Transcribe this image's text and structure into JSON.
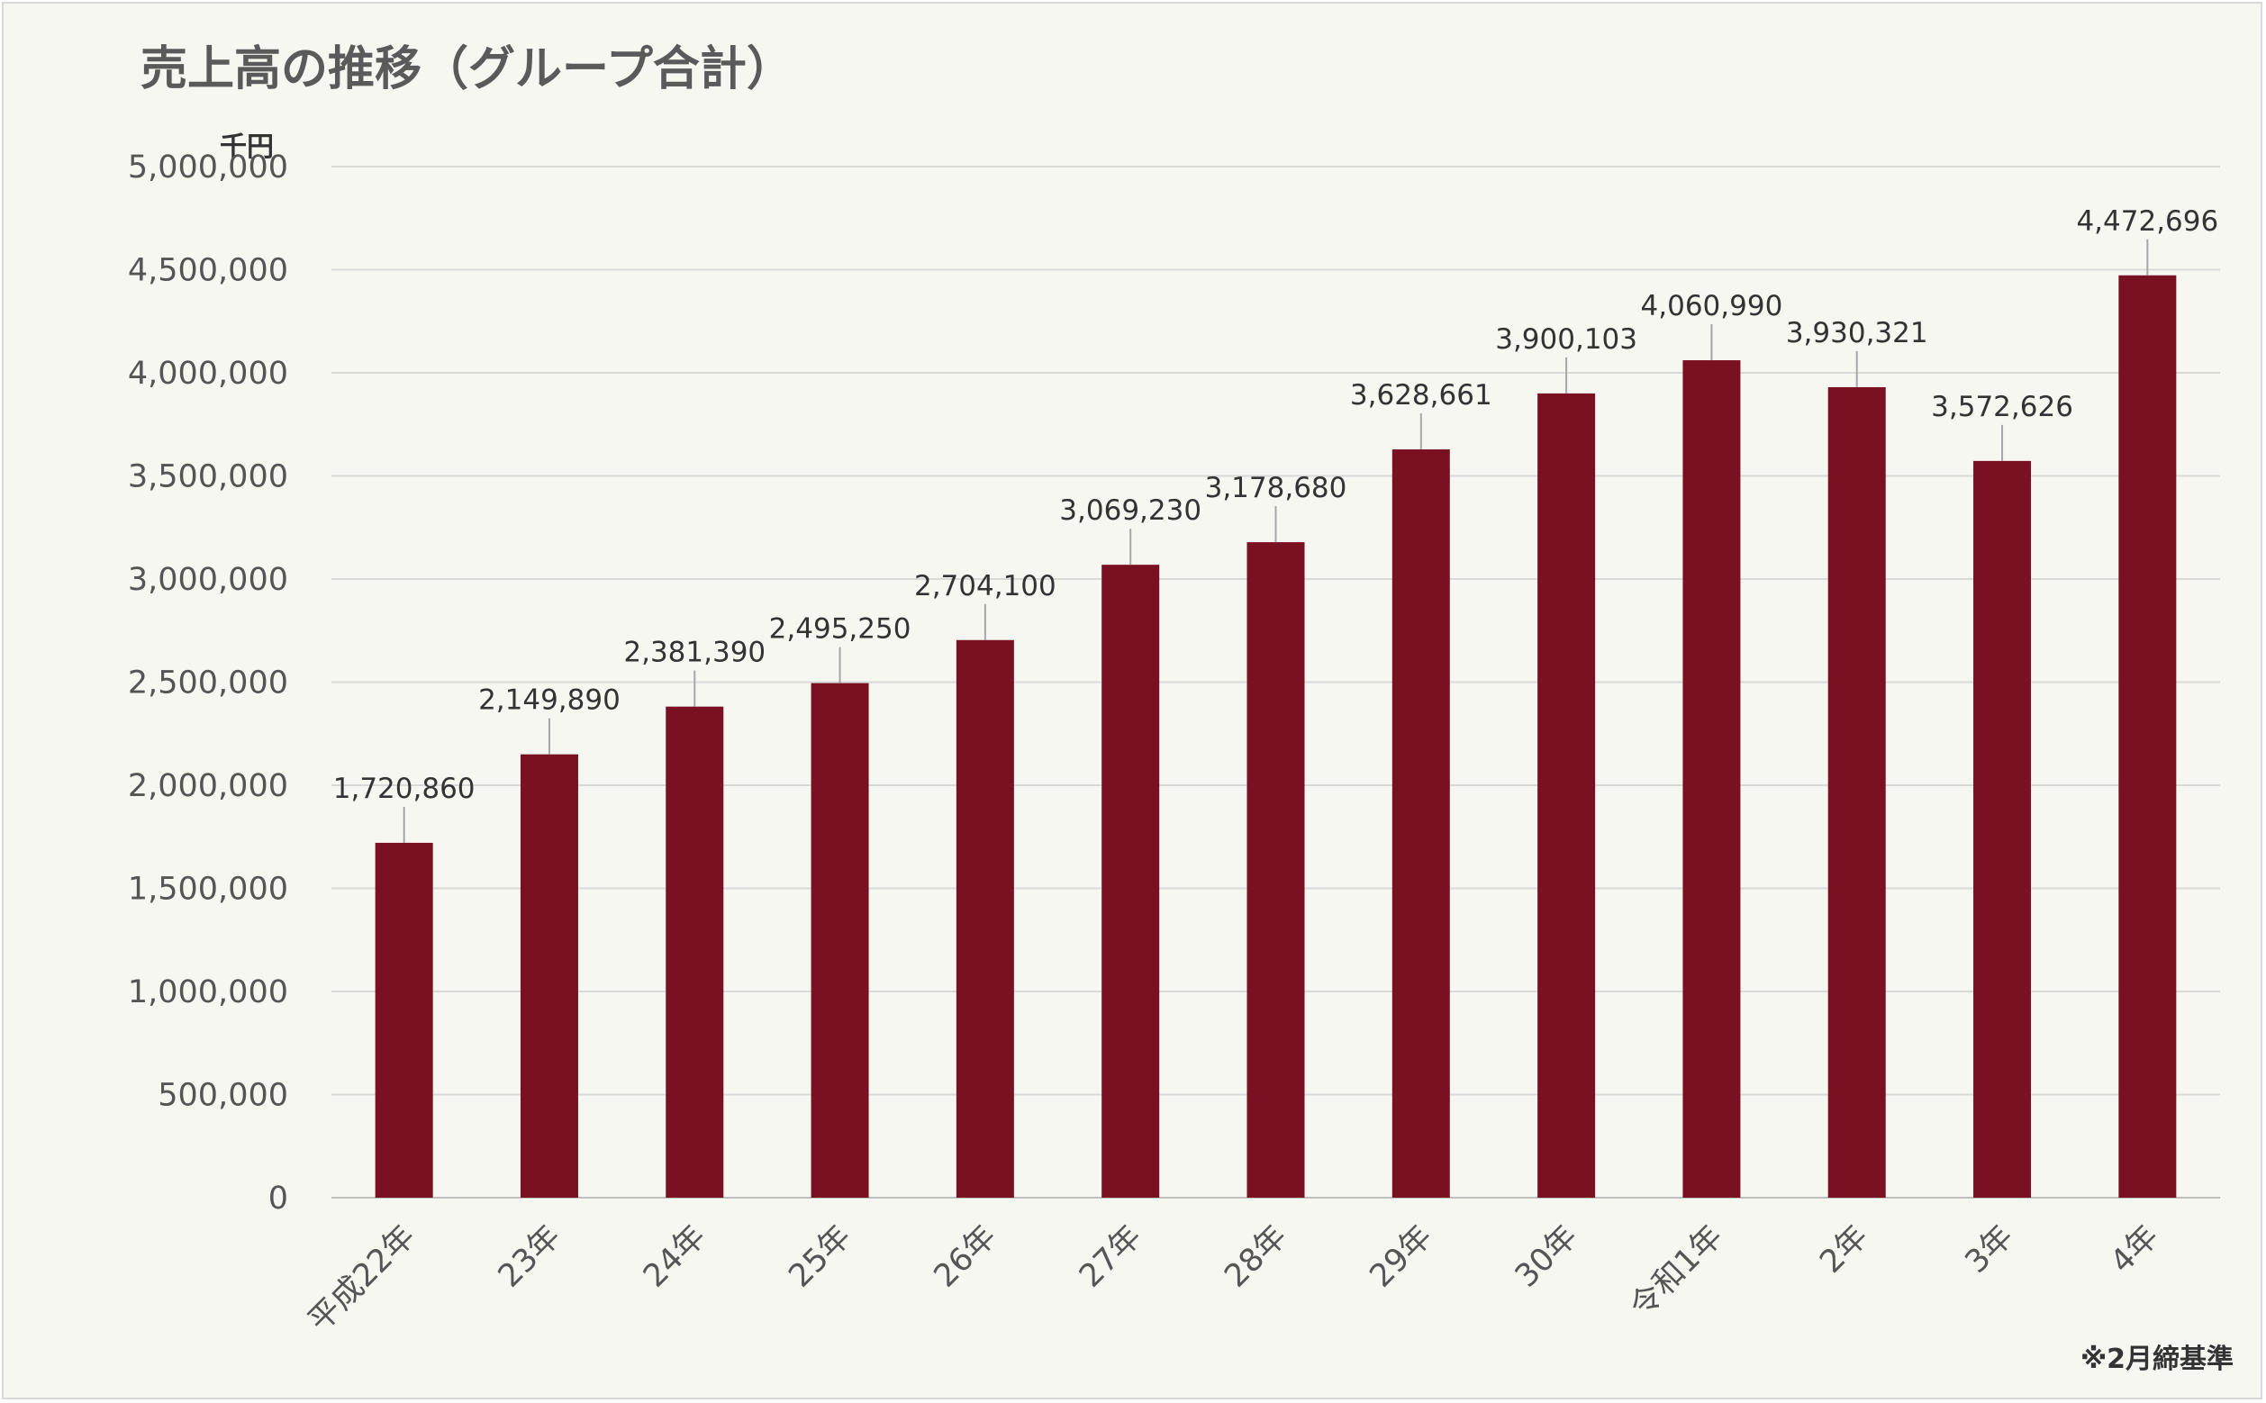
{
  "title": "売上高の推移（グループ合計）",
  "unit_label": "千円",
  "footnote": "※2月締基準",
  "chart_data": {
    "type": "bar",
    "title": "売上高の推移（グループ合計）",
    "xlabel": "",
    "ylabel": "千円",
    "ylim": [
      0,
      5000000
    ],
    "yticks": [
      0,
      500000,
      1000000,
      1500000,
      2000000,
      2500000,
      3000000,
      3500000,
      4000000,
      4500000,
      5000000
    ],
    "ytick_labels": [
      "0",
      "500,000",
      "1,000,000",
      "1,500,000",
      "2,000,000",
      "2,500,000",
      "3,000,000",
      "3,500,000",
      "4,000,000",
      "4,500,000",
      "5,000,000"
    ],
    "grid": true,
    "legend": "none",
    "bar_color": "#7a1123",
    "categories": [
      "平成22年",
      "23年",
      "24年",
      "25年",
      "26年",
      "27年",
      "28年",
      "29年",
      "30年",
      "令和1年",
      "2年",
      "3年",
      "4年"
    ],
    "values": [
      1720860,
      2149890,
      2381390,
      2495250,
      2704100,
      3069230,
      3178680,
      3628661,
      3900103,
      4060990,
      3930321,
      3572626,
      4472696
    ],
    "data_labels": [
      "1,720,860",
      "2,149,890",
      "2,381,390",
      "2,495,250",
      "2,704,100",
      "3,069,230",
      "3,178,680",
      "3,628,661",
      "3,900,103",
      "4,060,990",
      "3,930,321",
      "3,572,626",
      "4,472,696"
    ]
  }
}
